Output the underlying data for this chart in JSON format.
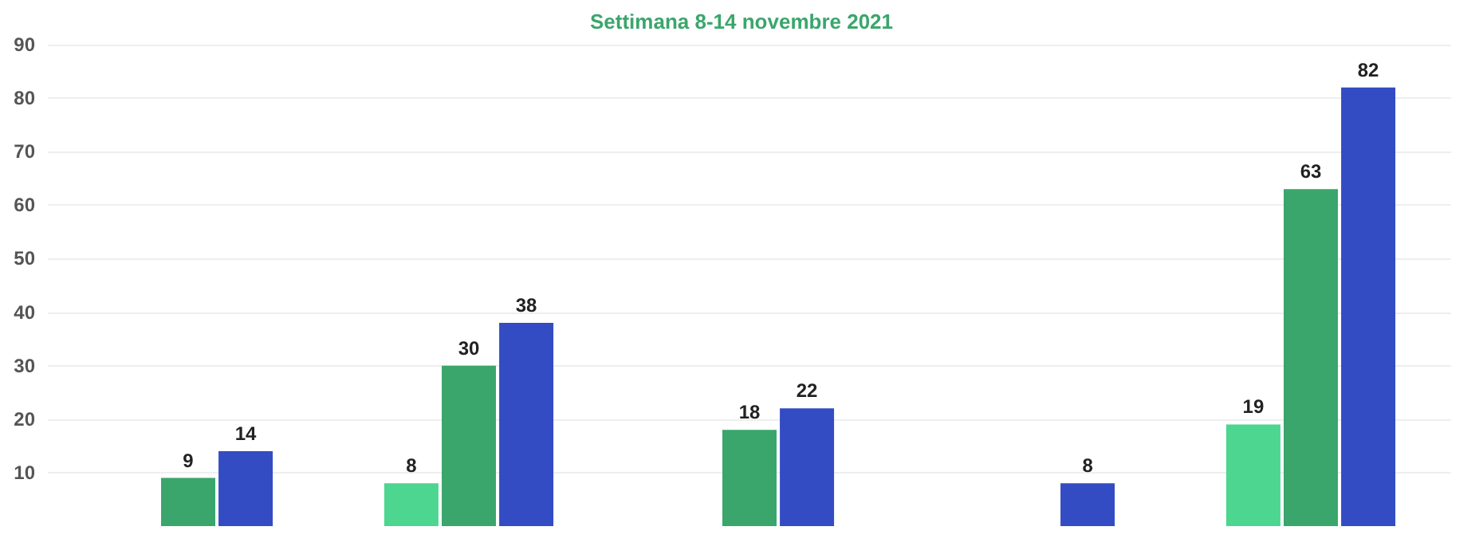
{
  "chart_data": {
    "type": "bar",
    "title": "Settimana 8-14 novembre 2021",
    "categories": [
      null,
      null,
      null,
      null,
      null
    ],
    "series": [
      {
        "color": "#4cd68f",
        "values": [
          null,
          8,
          null,
          null,
          19
        ]
      },
      {
        "color": "#3aa66c",
        "values": [
          9,
          30,
          18,
          null,
          63
        ]
      },
      {
        "color": "#334cc4",
        "values": [
          14,
          38,
          22,
          8,
          82
        ]
      }
    ],
    "ylim": [
      0,
      90
    ],
    "yticks": [
      10,
      20,
      30,
      40,
      50,
      60,
      70,
      80,
      90
    ],
    "grid": true,
    "data_labels": true
  }
}
